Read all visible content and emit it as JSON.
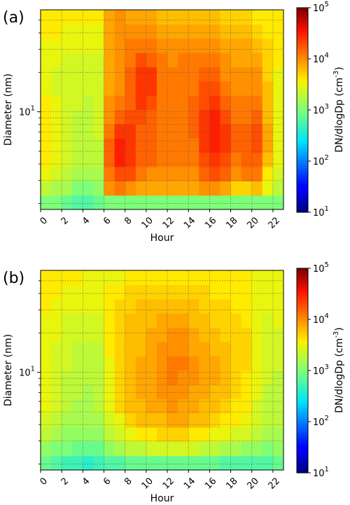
{
  "chart_data": [
    {
      "type": "heatmap",
      "panel_label": "(a)",
      "xlabel": "Hour",
      "ylabel": "Diameter (nm)",
      "xlim": [
        0,
        23
      ],
      "x_ticks": [
        "0",
        "2",
        "4",
        "6",
        "8",
        "10",
        "12",
        "14",
        "16",
        "18",
        "20",
        "22"
      ],
      "y_scale": "log",
      "y_ticks": [
        {
          "label_base": "10",
          "label_exp": "1"
        }
      ],
      "colorbar": {
        "label": "DN/dlogDp (cm",
        "label_exp": "-3",
        "label_close": ")",
        "scale": "log",
        "colormap": "jet",
        "range": [
          10,
          100000
        ],
        "ticks": [
          {
            "base": "10",
            "exp": "5"
          },
          {
            "base": "10",
            "exp": "4"
          },
          {
            "base": "10",
            "exp": "3"
          },
          {
            "base": "10",
            "exp": "2"
          },
          {
            "base": "10",
            "exp": "1"
          }
        ]
      },
      "grid": "dotted",
      "description_values": {
        "hours": [
          0,
          1,
          2,
          3,
          4,
          5,
          6,
          7,
          8,
          9,
          10,
          11,
          12,
          13,
          14,
          15,
          16,
          17,
          18,
          19,
          20,
          21,
          22
        ],
        "log10_dndlogdp_by_hour_lowest_to_highest_diameter_band": [
          [
            3.0,
            3.3,
            3.5,
            3.6,
            3.6,
            3.6,
            3.6,
            3.6,
            3.5,
            3.5,
            3.5,
            3.5,
            3.6,
            3.6
          ],
          [
            3.0,
            3.2,
            3.4,
            3.5,
            3.5,
            3.5,
            3.5,
            3.5,
            3.4,
            3.4,
            3.5,
            3.5,
            3.6,
            3.6
          ],
          [
            2.9,
            3.2,
            3.3,
            3.4,
            3.4,
            3.4,
            3.4,
            3.4,
            3.4,
            3.4,
            3.4,
            3.5,
            3.5,
            3.6
          ],
          [
            2.8,
            3.0,
            3.2,
            3.3,
            3.3,
            3.3,
            3.3,
            3.4,
            3.4,
            3.4,
            3.4,
            3.5,
            3.5,
            3.6
          ],
          [
            2.8,
            3.0,
            3.2,
            3.3,
            3.3,
            3.3,
            3.3,
            3.3,
            3.4,
            3.4,
            3.4,
            3.5,
            3.5,
            3.6
          ],
          [
            2.9,
            3.1,
            3.2,
            3.3,
            3.3,
            3.4,
            3.4,
            3.4,
            3.4,
            3.4,
            3.4,
            3.5,
            3.5,
            3.6
          ],
          [
            3.0,
            4.0,
            4.1,
            4.2,
            4.2,
            4.1,
            4.0,
            4.0,
            3.9,
            3.9,
            3.9,
            3.9,
            3.9,
            3.9
          ],
          [
            3.0,
            4.1,
            4.3,
            4.5,
            4.5,
            4.4,
            4.2,
            4.1,
            4.0,
            4.0,
            4.0,
            4.0,
            4.0,
            4.0
          ],
          [
            3.0,
            4.0,
            4.3,
            4.4,
            4.4,
            4.4,
            4.3,
            4.2,
            4.2,
            4.2,
            4.1,
            4.1,
            4.0,
            3.9
          ],
          [
            3.0,
            3.9,
            4.1,
            4.2,
            4.2,
            4.2,
            4.3,
            4.4,
            4.4,
            4.4,
            4.3,
            4.1,
            4.0,
            3.9
          ],
          [
            3.0,
            3.9,
            4.0,
            4.2,
            4.2,
            4.2,
            4.2,
            4.3,
            4.4,
            4.4,
            4.2,
            4.1,
            4.0,
            3.9
          ],
          [
            3.0,
            3.9,
            4.0,
            4.1,
            4.1,
            4.1,
            4.1,
            4.1,
            4.1,
            4.1,
            4.1,
            4.0,
            3.9,
            3.8
          ],
          [
            3.0,
            3.9,
            4.0,
            4.1,
            4.1,
            4.1,
            4.1,
            4.1,
            4.1,
            4.1,
            4.0,
            4.0,
            3.9,
            3.8
          ],
          [
            3.0,
            3.9,
            4.0,
            4.1,
            4.1,
            4.1,
            4.1,
            4.1,
            4.1,
            4.1,
            4.1,
            4.0,
            3.9,
            3.8
          ],
          [
            3.0,
            3.9,
            4.0,
            4.1,
            4.1,
            4.2,
            4.2,
            4.2,
            4.1,
            4.1,
            4.1,
            4.0,
            3.9,
            3.8
          ],
          [
            3.0,
            4.0,
            4.2,
            4.3,
            4.4,
            4.4,
            4.4,
            4.3,
            4.3,
            4.2,
            4.1,
            4.0,
            3.9,
            3.8
          ],
          [
            3.0,
            4.0,
            4.3,
            4.4,
            4.5,
            4.5,
            4.5,
            4.4,
            4.3,
            4.2,
            4.1,
            4.0,
            3.9,
            3.8
          ],
          [
            3.0,
            3.9,
            4.2,
            4.3,
            4.4,
            4.4,
            4.3,
            4.2,
            4.1,
            4.0,
            4.0,
            3.9,
            3.8,
            3.7
          ],
          [
            3.0,
            3.7,
            4.0,
            4.1,
            4.2,
            4.2,
            4.1,
            4.1,
            4.0,
            4.0,
            3.9,
            3.9,
            3.8,
            3.7
          ],
          [
            3.0,
            3.7,
            4.1,
            4.2,
            4.2,
            4.2,
            4.1,
            4.1,
            4.0,
            4.0,
            3.9,
            3.9,
            3.8,
            3.7
          ],
          [
            3.0,
            3.8,
            4.1,
            4.2,
            4.3,
            4.3,
            4.2,
            4.1,
            4.0,
            4.0,
            3.9,
            3.8,
            3.7,
            3.6
          ],
          [
            3.0,
            3.5,
            3.6,
            3.8,
            3.9,
            3.9,
            3.8,
            3.8,
            3.8,
            3.7,
            3.7,
            3.7,
            3.6,
            3.6
          ],
          [
            3.0,
            3.3,
            3.4,
            3.5,
            3.5,
            3.5,
            3.5,
            3.5,
            3.5,
            3.5,
            3.6,
            3.6,
            3.6,
            3.6
          ]
        ]
      }
    },
    {
      "type": "heatmap",
      "panel_label": "(b)",
      "xlabel": "Hour",
      "ylabel": "Diameter (nm)",
      "xlim": [
        0,
        23
      ],
      "x_ticks": [
        "0",
        "2",
        "4",
        "6",
        "8",
        "10",
        "12",
        "14",
        "16",
        "18",
        "20",
        "22"
      ],
      "y_scale": "log",
      "y_ticks": [
        {
          "label_base": "10",
          "label_exp": "1"
        }
      ],
      "colorbar": {
        "label": "DN/dlogDp (cm",
        "label_exp": "-3",
        "label_close": ")",
        "scale": "log",
        "colormap": "jet",
        "range": [
          10,
          100000
        ],
        "ticks": [
          {
            "base": "10",
            "exp": "5"
          },
          {
            "base": "10",
            "exp": "4"
          },
          {
            "base": "10",
            "exp": "3"
          },
          {
            "base": "10",
            "exp": "2"
          },
          {
            "base": "10",
            "exp": "1"
          }
        ]
      },
      "grid": "dotted",
      "description_values": {
        "hours": [
          0,
          1,
          2,
          3,
          4,
          5,
          6,
          7,
          8,
          9,
          10,
          11,
          12,
          13,
          14,
          15,
          16,
          17,
          18,
          19,
          20,
          21,
          22
        ],
        "log10_dndlogdp_by_hour_lowest_to_highest_diameter_band": [
          [
            2.9,
            3.1,
            3.3,
            3.4,
            3.5,
            3.5,
            3.5,
            3.5,
            3.5,
            3.5,
            3.5,
            3.6,
            3.6,
            3.6
          ],
          [
            2.8,
            3.0,
            3.2,
            3.3,
            3.4,
            3.4,
            3.4,
            3.4,
            3.4,
            3.5,
            3.5,
            3.5,
            3.6,
            3.6
          ],
          [
            2.7,
            3.0,
            3.1,
            3.2,
            3.3,
            3.3,
            3.3,
            3.4,
            3.4,
            3.4,
            3.4,
            3.5,
            3.5,
            3.6
          ],
          [
            2.7,
            2.9,
            3.1,
            3.2,
            3.2,
            3.3,
            3.3,
            3.3,
            3.3,
            3.4,
            3.4,
            3.5,
            3.5,
            3.6
          ],
          [
            2.6,
            2.9,
            3.1,
            3.2,
            3.2,
            3.2,
            3.3,
            3.3,
            3.3,
            3.4,
            3.4,
            3.5,
            3.5,
            3.5
          ],
          [
            2.7,
            2.9,
            3.1,
            3.2,
            3.3,
            3.3,
            3.3,
            3.3,
            3.3,
            3.4,
            3.4,
            3.5,
            3.5,
            3.5
          ],
          [
            2.8,
            3.1,
            3.3,
            3.4,
            3.5,
            3.5,
            3.5,
            3.5,
            3.6,
            3.6,
            3.6,
            3.6,
            3.6,
            3.5
          ],
          [
            2.8,
            3.2,
            3.4,
            3.5,
            3.7,
            3.7,
            3.7,
            3.7,
            3.7,
            3.7,
            3.7,
            3.7,
            3.6,
            3.5
          ],
          [
            2.9,
            3.3,
            3.5,
            3.7,
            3.8,
            3.8,
            3.8,
            3.8,
            3.8,
            3.8,
            3.8,
            3.7,
            3.7,
            3.6
          ],
          [
            2.9,
            3.3,
            3.6,
            3.8,
            3.8,
            3.9,
            3.9,
            3.9,
            3.8,
            3.8,
            3.8,
            3.8,
            3.7,
            3.6
          ],
          [
            2.9,
            3.4,
            3.6,
            3.8,
            3.9,
            3.9,
            3.9,
            3.9,
            3.9,
            3.9,
            3.8,
            3.8,
            3.7,
            3.6
          ],
          [
            2.9,
            3.4,
            3.7,
            3.8,
            3.9,
            4.0,
            4.0,
            4.0,
            4.0,
            3.9,
            3.9,
            3.8,
            3.7,
            3.6
          ],
          [
            2.9,
            3.4,
            3.7,
            3.9,
            4.0,
            4.0,
            4.1,
            4.1,
            4.0,
            4.0,
            3.9,
            3.8,
            3.7,
            3.6
          ],
          [
            2.9,
            3.4,
            3.7,
            3.9,
            3.9,
            4.0,
            4.0,
            4.1,
            4.0,
            4.0,
            3.9,
            3.8,
            3.7,
            3.6
          ],
          [
            2.9,
            3.4,
            3.6,
            3.8,
            3.9,
            3.9,
            4.0,
            4.0,
            3.9,
            3.9,
            3.8,
            3.8,
            3.7,
            3.6
          ],
          [
            2.9,
            3.3,
            3.6,
            3.8,
            3.8,
            3.9,
            3.9,
            3.9,
            3.9,
            3.8,
            3.8,
            3.7,
            3.7,
            3.6
          ],
          [
            2.9,
            3.3,
            3.5,
            3.7,
            3.8,
            3.8,
            3.9,
            3.9,
            3.8,
            3.8,
            3.7,
            3.7,
            3.6,
            3.6
          ],
          [
            2.8,
            3.2,
            3.5,
            3.6,
            3.7,
            3.8,
            3.8,
            3.8,
            3.8,
            3.7,
            3.7,
            3.7,
            3.6,
            3.6
          ],
          [
            2.8,
            3.2,
            3.4,
            3.6,
            3.6,
            3.7,
            3.7,
            3.7,
            3.7,
            3.7,
            3.7,
            3.6,
            3.6,
            3.6
          ],
          [
            2.8,
            3.1,
            3.4,
            3.5,
            3.6,
            3.6,
            3.6,
            3.7,
            3.7,
            3.7,
            3.6,
            3.6,
            3.6,
            3.6
          ],
          [
            2.8,
            3.1,
            3.3,
            3.4,
            3.4,
            3.5,
            3.5,
            3.5,
            3.5,
            3.5,
            3.5,
            3.5,
            3.5,
            3.5
          ],
          [
            2.8,
            3.0,
            3.2,
            3.3,
            3.3,
            3.3,
            3.4,
            3.4,
            3.4,
            3.4,
            3.4,
            3.5,
            3.5,
            3.5
          ],
          [
            2.9,
            3.1,
            3.2,
            3.3,
            3.3,
            3.3,
            3.3,
            3.4,
            3.4,
            3.4,
            3.5,
            3.5,
            3.5,
            3.5
          ]
        ]
      }
    }
  ]
}
